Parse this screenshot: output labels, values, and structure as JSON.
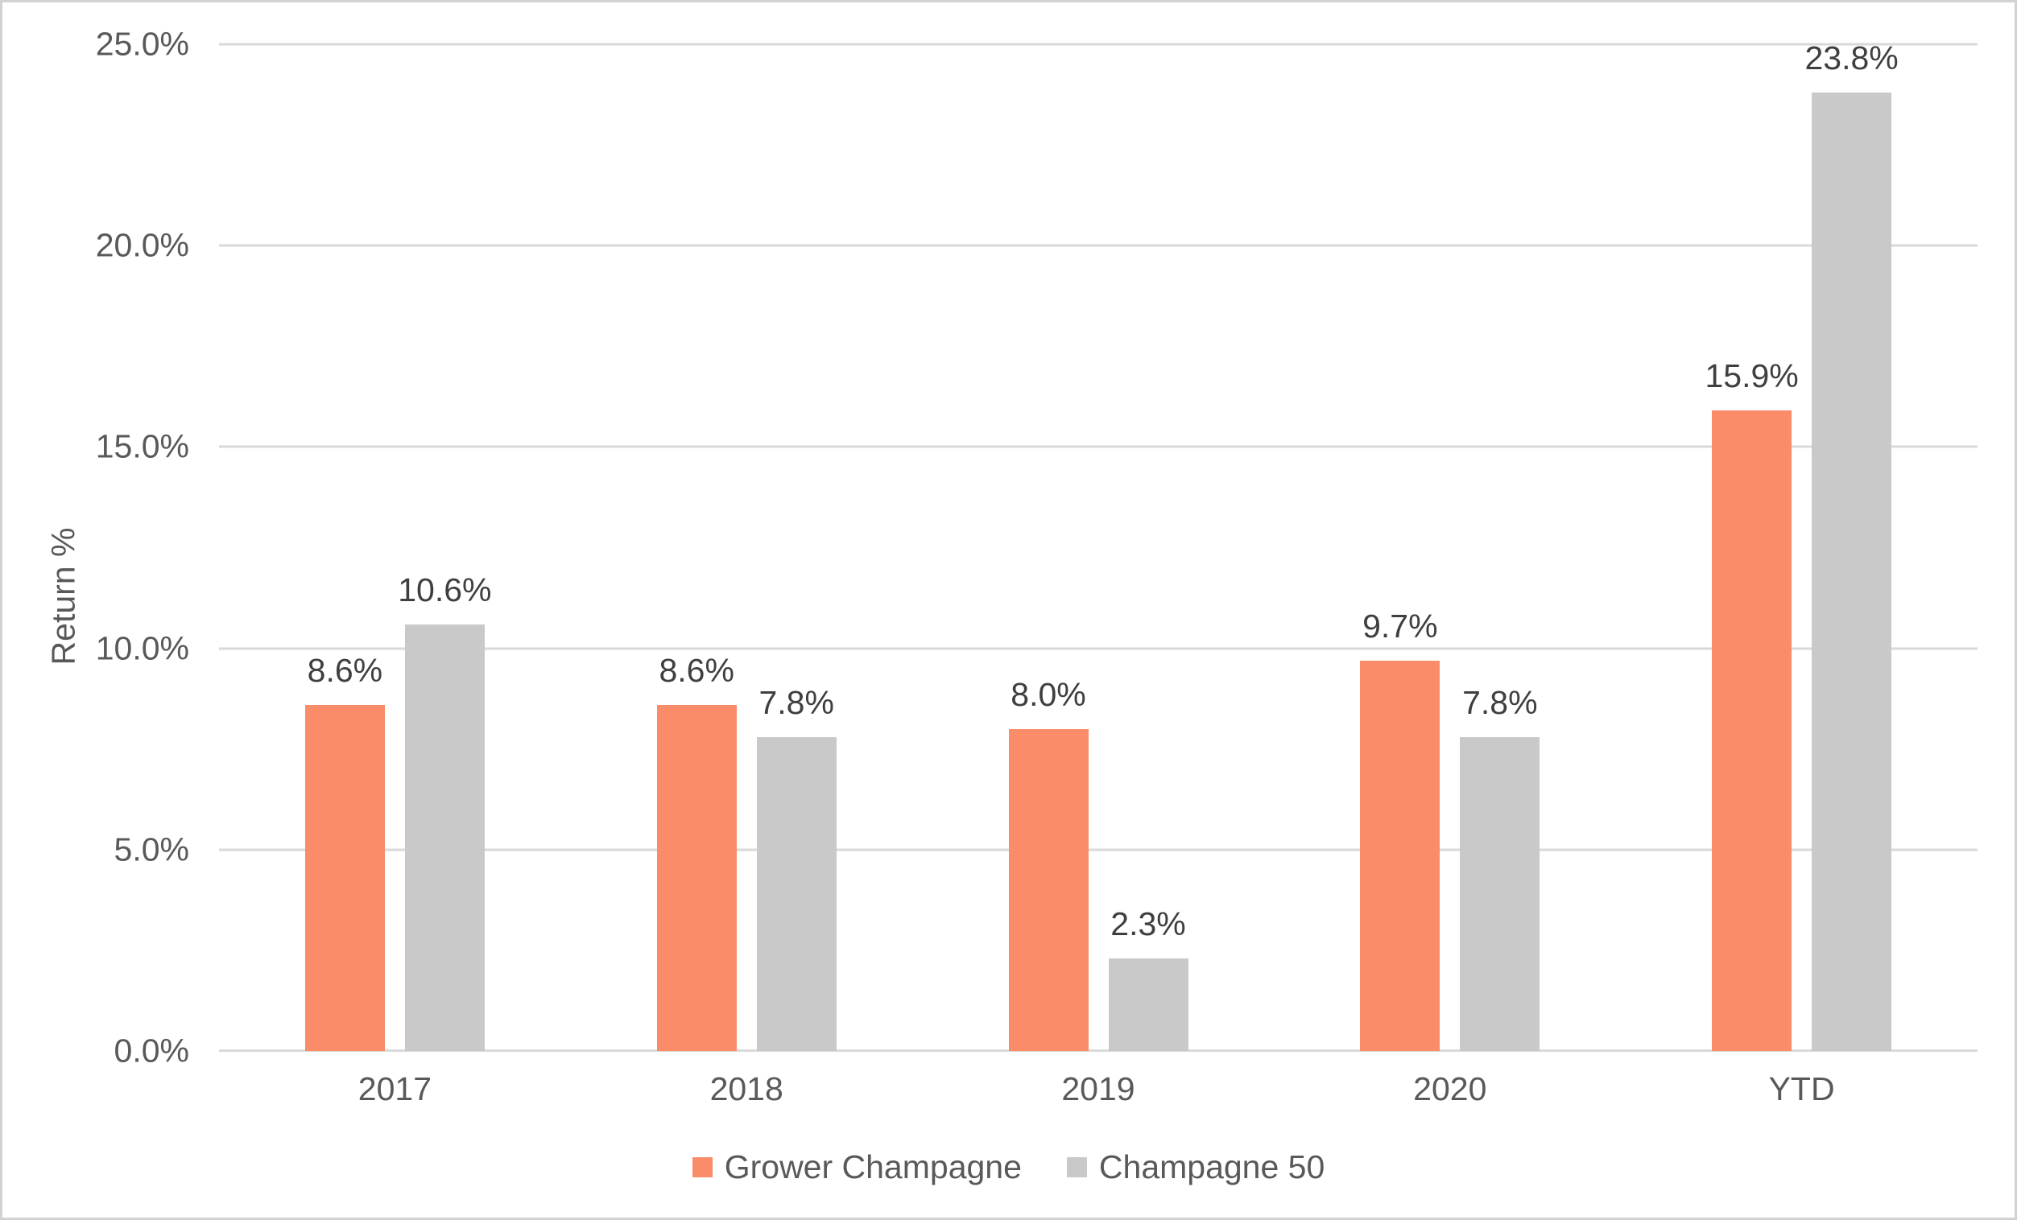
{
  "chart_data": {
    "type": "bar",
    "title": "",
    "xlabel": "",
    "ylabel": "Return %",
    "categories": [
      "2017",
      "2018",
      "2019",
      "2020",
      "YTD"
    ],
    "series": [
      {
        "name": "Grower Champagne",
        "color": "#FA8C69",
        "values": [
          8.6,
          8.6,
          8.0,
          9.7,
          15.9
        ],
        "labels": [
          "8.6%",
          "8.6%",
          "8.0%",
          "9.7%",
          "15.9%"
        ]
      },
      {
        "name": "Champagne 50",
        "color": "#C9C9C9",
        "values": [
          10.6,
          7.8,
          2.3,
          7.8,
          23.8
        ],
        "labels": [
          "10.6%",
          "7.8%",
          "2.3%",
          "7.8%",
          "23.8%"
        ]
      }
    ],
    "y_axis": {
      "min": 0,
      "max": 25,
      "tick_step": 5,
      "tick_labels": [
        "0.0%",
        "5.0%",
        "10.0%",
        "15.0%",
        "20.0%",
        "25.0%"
      ]
    },
    "grid": true,
    "legend_position": "bottom",
    "colors": {
      "gridline": "#D9D9D9",
      "axis_line": "#D9D9D9",
      "tick_text": "#595959",
      "data_label_text": "#3F3F3F",
      "frame_border": "#D2D2D2",
      "background": "#FFFFFF"
    }
  }
}
